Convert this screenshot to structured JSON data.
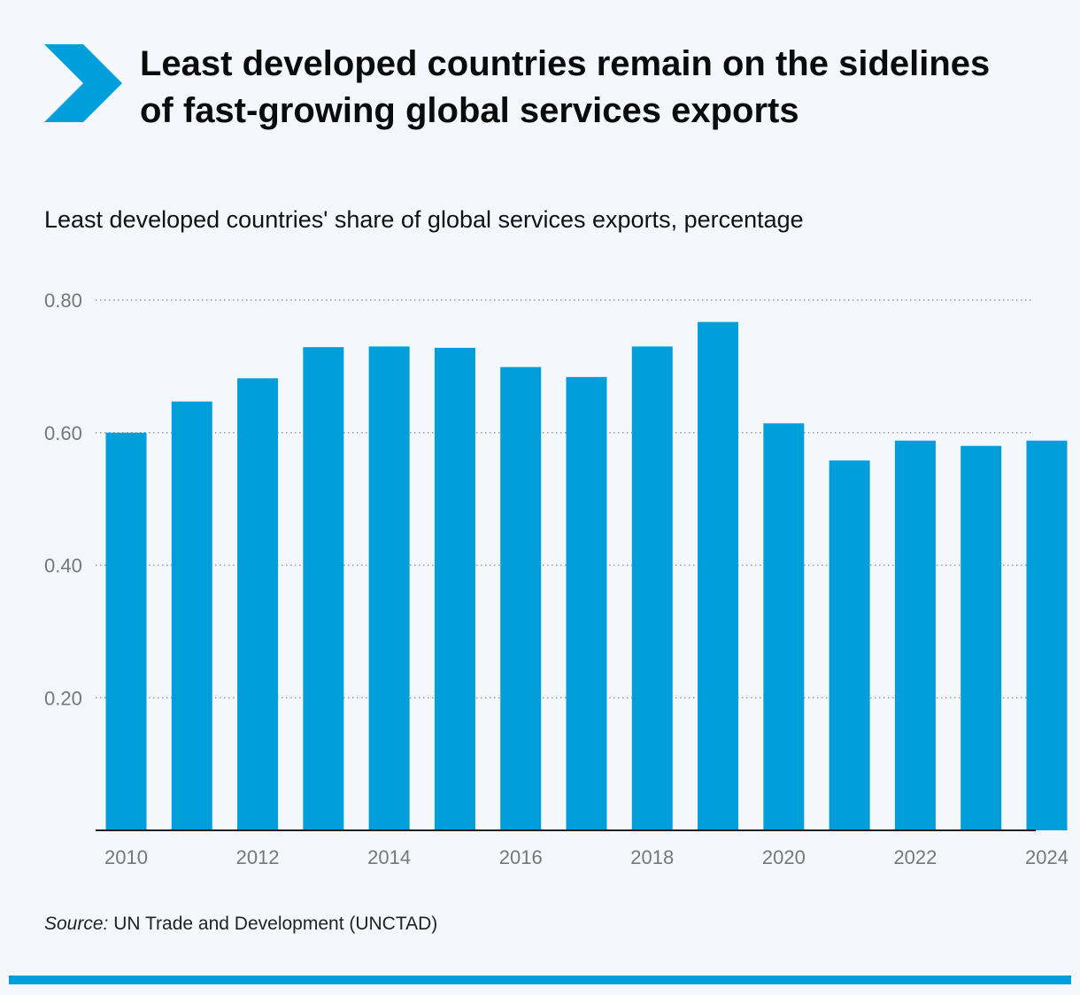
{
  "header": {
    "title": "Least developed countries remain on the sidelines of fast-growing global services exports",
    "subtitle": "Least developed countries' share of global services exports, percentage"
  },
  "footer": {
    "source_label": "Source:",
    "source_text": "UN Trade and Development (UNCTAD)"
  },
  "colors": {
    "bar": "#009edb",
    "accent": "#009edb",
    "background": "#f4f8fc"
  },
  "icons": {
    "logo": "chevron-right-icon"
  },
  "chart_data": {
    "type": "bar",
    "title": "Least developed countries remain on the sidelines of fast-growing global services exports",
    "subtitle": "Least developed countries' share of global services exports, percentage",
    "xlabel": "",
    "ylabel": "",
    "categories": [
      "2010",
      "2011",
      "2012",
      "2013",
      "2014",
      "2015",
      "2016",
      "2017",
      "2018",
      "2019",
      "2020",
      "2021",
      "2022",
      "2023",
      "2024"
    ],
    "values": [
      0.6,
      0.647,
      0.682,
      0.729,
      0.73,
      0.728,
      0.699,
      0.684,
      0.73,
      0.767,
      0.614,
      0.558,
      0.588,
      0.58,
      0.588
    ],
    "x_tick_labels": [
      "2010",
      "",
      "2012",
      "",
      "2014",
      "",
      "2016",
      "",
      "2018",
      "",
      "2020",
      "",
      "2022",
      "",
      "2024"
    ],
    "ylim": [
      0,
      0.8
    ],
    "yticks": [
      "0.20",
      "0.40",
      "0.60",
      "0.80"
    ],
    "ytick_values": [
      0.2,
      0.4,
      0.6,
      0.8
    ],
    "grid": true,
    "legend": "none"
  }
}
